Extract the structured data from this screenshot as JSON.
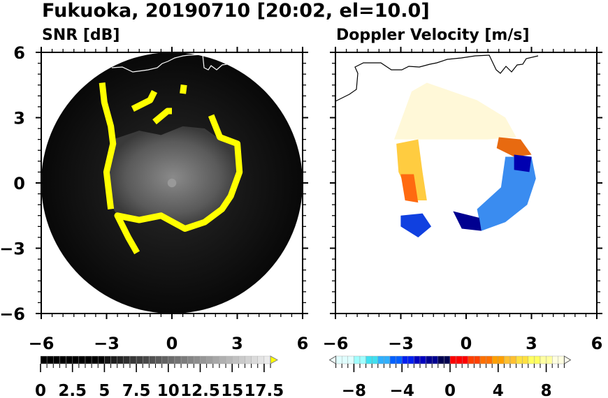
{
  "chart_data": [
    {
      "type": "heatmap",
      "figure_title": "Fukuoka, 20190710 [20:02, el=10.0]",
      "title": "SNR [dB]",
      "xlim": [
        -6,
        6
      ],
      "ylim": [
        -6,
        6
      ],
      "xticks": [
        "−6",
        "−3",
        "0",
        "3",
        "6"
      ],
      "yticks": [
        "6",
        "3",
        "0",
        "−3",
        "−6"
      ],
      "xtick_values": [
        -6,
        -3,
        0,
        3,
        6
      ],
      "ytick_values": [
        6,
        3,
        0,
        -3,
        -6
      ],
      "colorbar": {
        "min": 0,
        "max": 18,
        "step": 0.5,
        "tick_values": [
          0,
          2.5,
          5,
          7.5,
          10,
          12.5,
          15,
          17.5
        ],
        "tick_labels": [
          "0",
          "2.5",
          "5",
          "7.5",
          "10",
          "12.5",
          "15",
          "17.5"
        ],
        "extend": "max",
        "over_color": "#ffff00",
        "colors": "black below 5, grayscale 5 to 18"
      },
      "coastline_color": "#ffffff"
    },
    {
      "type": "heatmap",
      "title": "Doppler Velocity [m/s]",
      "xlim": [
        -6,
        6
      ],
      "ylim": [
        -6,
        6
      ],
      "xticks": [
        "−6",
        "−3",
        "0",
        "3",
        "6"
      ],
      "xtick_values": [
        -6,
        -3,
        0,
        3,
        6
      ],
      "ytick_values": [
        6,
        3,
        0,
        -3,
        -6
      ],
      "colorbar": {
        "min": -9.5,
        "max": 9.5,
        "step": 0.5,
        "tick_values": [
          -8,
          -4,
          0,
          4,
          8
        ],
        "tick_labels": [
          "−8",
          "−4",
          "0",
          "4",
          "8"
        ],
        "extend": "both",
        "negative_colors": [
          "#e0ffff",
          "#40e0f0",
          "#0060ff",
          "#0000c0",
          "#000050"
        ],
        "positive_colors": [
          "#ff0000",
          "#ff8000",
          "#ffc000",
          "#ffff60",
          "#ffffe0"
        ]
      },
      "coastline_color": "#000000"
    }
  ]
}
